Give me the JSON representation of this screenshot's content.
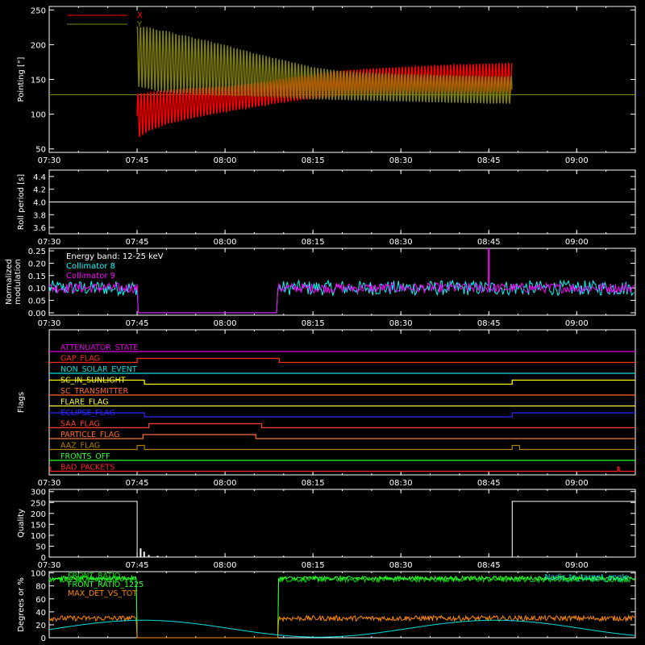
{
  "chart_data": [
    {
      "type": "line",
      "ylabel": "Pointing [\"]",
      "yticks": [
        "50",
        "100",
        "150",
        "200",
        "250"
      ],
      "xticks": [
        "07:30",
        "07:45",
        "08:00",
        "08:15",
        "08:30",
        "08:45",
        "09:00"
      ],
      "ylim": [
        45,
        255
      ],
      "legend_placement": "top-left",
      "series": [
        {
          "name": "X",
          "color": "#ff0000",
          "envelope_x": [
            "07:45",
            "07:47",
            "07:50",
            "07:55",
            "08:00",
            "08:05",
            "08:10",
            "08:15",
            "08:20",
            "08:25",
            "08:30",
            "08:35",
            "08:40",
            "08:45",
            "08:49"
          ],
          "envelope_min": [
            65,
            75,
            85,
            95,
            103,
            110,
            117,
            122,
            126,
            128,
            129,
            130,
            130,
            130,
            130
          ],
          "envelope_max": [
            130,
            132,
            135,
            138,
            140,
            145,
            152,
            158,
            163,
            166,
            168,
            170,
            172,
            173,
            174
          ]
        },
        {
          "name": "Y",
          "color": "#808000",
          "envelope_x": [
            "07:45",
            "07:47",
            "07:50",
            "07:55",
            "08:00",
            "08:05",
            "08:10",
            "08:15",
            "08:20",
            "08:25",
            "08:30",
            "08:35",
            "08:40",
            "08:45",
            "08:49"
          ],
          "envelope_min": [
            140,
            135,
            130,
            128,
            126,
            125,
            123,
            121,
            120,
            119,
            118,
            117,
            116,
            115,
            115
          ],
          "envelope_max": [
            228,
            225,
            220,
            210,
            200,
            188,
            178,
            168,
            162,
            160,
            158,
            157,
            156,
            155,
            155
          ]
        }
      ],
      "baseline": {
        "value": 128,
        "color": "#808000"
      }
    },
    {
      "type": "line",
      "ylabel": "Roll period [s]",
      "yticks": [
        "3.6",
        "3.8",
        "4.0",
        "4.2",
        "4.4"
      ],
      "xticks": [
        "07:30",
        "07:45",
        "08:00",
        "08:15",
        "08:30",
        "08:45",
        "09:00"
      ],
      "ylim": [
        3.5,
        4.5
      ],
      "series": [
        {
          "color": "#ffffff",
          "x": [
            "07:30",
            "09:10"
          ],
          "values": [
            4.0,
            4.0
          ]
        }
      ]
    },
    {
      "type": "line",
      "ylabel": "Normalized modulation",
      "yticks": [
        "0.00",
        "0.05",
        "0.10",
        "0.15",
        "0.20",
        "0.25"
      ],
      "xticks": [
        "07:30",
        "07:45",
        "08:00",
        "08:15",
        "08:30",
        "08:45",
        "09:00"
      ],
      "ylim": [
        -0.01,
        0.26
      ],
      "legend_placement": "top-left",
      "legend_title": "Energy band: 12-25 keV",
      "gaps": [
        [
          "07:45",
          "08:09"
        ]
      ],
      "series": [
        {
          "name": "Collimator 8",
          "color": "#00ffff",
          "mean": 0.1,
          "spread": 0.03
        },
        {
          "name": "Collimator 9",
          "color": "#ff00ff",
          "mean": 0.1,
          "spread": 0.02
        }
      ]
    },
    {
      "type": "line",
      "ylabel": "Flags",
      "xticks": [
        "07:30",
        "07:45",
        "08:00",
        "08:15",
        "08:30",
        "08:45",
        "09:00"
      ],
      "flags": [
        {
          "name": "ATTENUATOR_STATE",
          "color": "#e000e0",
          "highs": []
        },
        {
          "name": "GAP_FLAG",
          "color": "#ff3010",
          "highs": [
            [
              "07:45",
              "08:09"
            ]
          ]
        },
        {
          "name": "NON_SOLAR_EVENT",
          "color": "#00e0e0",
          "highs": []
        },
        {
          "name": "SC_IN_SUNLIGHT",
          "color": "#ffff00",
          "highs": [
            [
              "07:30",
              "07:46"
            ],
            [
              "08:49",
              "09:10"
            ]
          ],
          "invert": true
        },
        {
          "name": "SC_TRANSMITTER",
          "color": "#ff6a30",
          "highs": []
        },
        {
          "name": "FLARE_FLAG",
          "color": "#ffff40",
          "highs": []
        },
        {
          "name": "ECLIPSE_FLAG",
          "color": "#2a2aff",
          "highs": [
            [
              "07:30",
              "07:46"
            ],
            [
              "08:49",
              "09:10"
            ]
          ]
        },
        {
          "name": "SAA_FLAG",
          "color": "#ff4030",
          "highs": [
            [
              "07:47",
              "08:06"
            ]
          ]
        },
        {
          "name": "PARTICLE_FLAG",
          "color": "#ff7030",
          "highs": [
            [
              "07:46",
              "08:05"
            ]
          ]
        },
        {
          "name": "AAZ_FLAG",
          "color": "#b08000",
          "highs": [
            [
              "07:45",
              "07:46"
            ],
            [
              "08:49",
              "08:50"
            ]
          ]
        },
        {
          "name": "FRONTS_OFF",
          "color": "#30ff30",
          "highs": []
        },
        {
          "name": "BAD_PACKETS",
          "color": "#ff2020",
          "highs": [
            [
              "07:30",
              "07:30"
            ],
            [
              "09:07",
              "09:07"
            ]
          ]
        }
      ]
    },
    {
      "type": "line",
      "ylabel": "Quality",
      "yticks": [
        "0",
        "50",
        "100",
        "150",
        "200",
        "250",
        "300"
      ],
      "xticks": [
        "07:30",
        "07:45",
        "08:00",
        "08:15",
        "08:30",
        "08:45",
        "09:00"
      ],
      "ylim": [
        0,
        310
      ],
      "series": [
        {
          "color": "#ffffff",
          "x": [
            "07:30",
            "07:45",
            "07:45",
            "08:49",
            "08:49",
            "09:10"
          ],
          "values": [
            255,
            255,
            0,
            0,
            255,
            255
          ]
        }
      ]
    },
    {
      "type": "line",
      "ylabel": "Degrees or %",
      "yticks": [
        "0",
        "20",
        "40",
        "60",
        "80",
        "100"
      ],
      "ylim": [
        0,
        102
      ],
      "legend_placement": "top-left",
      "legend_right": "Nadir_to_target_angle",
      "gaps": [
        [
          "07:45",
          "08:09"
        ]
      ],
      "series": [
        {
          "name": "FRONT_RATIO",
          "color": "#00e000",
          "mean": 90,
          "spread": 4
        },
        {
          "name": "FRONT_RATIO_1225",
          "color": "#30ff30",
          "mean": 92,
          "spread": 3
        },
        {
          "name": "MAX_DET_VS_TOT",
          "color": "#ff8a00",
          "mean": 30,
          "spread": 4
        },
        {
          "name": "Nadir_to_target_angle",
          "color": "#00e0e0",
          "shape": "cosine"
        }
      ]
    }
  ]
}
